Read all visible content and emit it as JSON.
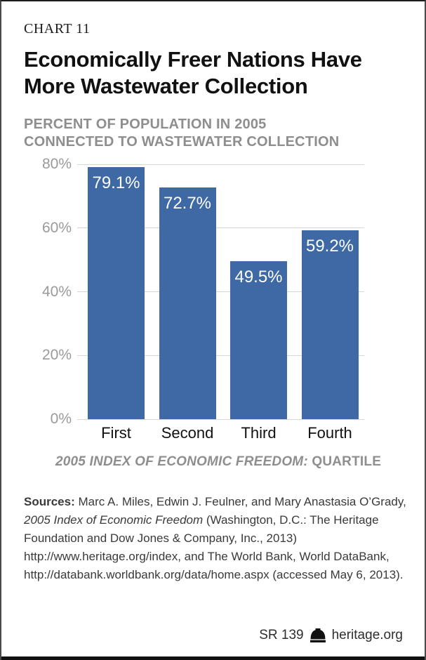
{
  "header": {
    "kicker": "CHART 11",
    "title_lines": [
      "Economically Freer Nations Have",
      "More Wastewater Collection"
    ],
    "subtitle_lines": [
      "PERCENT OF POPULATION IN 2005",
      "CONNECTED TO WASTEWATER COLLECTION"
    ]
  },
  "chart_data": {
    "type": "bar",
    "categories": [
      "First",
      "Second",
      "Third",
      "Fourth"
    ],
    "values": [
      79.1,
      72.7,
      49.5,
      59.2
    ],
    "value_labels": [
      "79.1%",
      "72.7%",
      "49.5%",
      "59.2%"
    ],
    "title": "Economically Freer Nations Have More Wastewater Collection",
    "subtitle": "Percent of population in 2005 connected to wastewater collection",
    "xlabel_italic": "2005 INDEX OF ECONOMIC FREEDOM:",
    "xlabel_regular": "QUARTILE",
    "ylabel": "",
    "ylim": [
      0,
      80
    ],
    "yticks": [
      "80%",
      "60%",
      "40%",
      "20%",
      "0%"
    ],
    "grid": true,
    "legend": false,
    "bar_color": "#3E69A5",
    "grid_color": "#D6D6D6",
    "tick_label_color": "#9A9A9A",
    "value_label_color": "#FFFFFF"
  },
  "sources": {
    "label": "Sources:",
    "text_before_italic": " Marc A. Miles, Edwin J. Feulner, and Mary Anastasia O’Grady, ",
    "italic": "2005 Index of Economic Freedom",
    "text_after_italic": " (Washington, D.C.: The Heritage Foundation and Dow Jones & Company, Inc., 2013) http://www.heritage.org/index, and The World Bank, World DataBank, http://databank.worldbank.org/data/home.aspx (accessed May 6, 2013)."
  },
  "footer": {
    "report_id": "SR 139",
    "logo_icon": "liberty-bell-icon",
    "site": "heritage.org"
  }
}
